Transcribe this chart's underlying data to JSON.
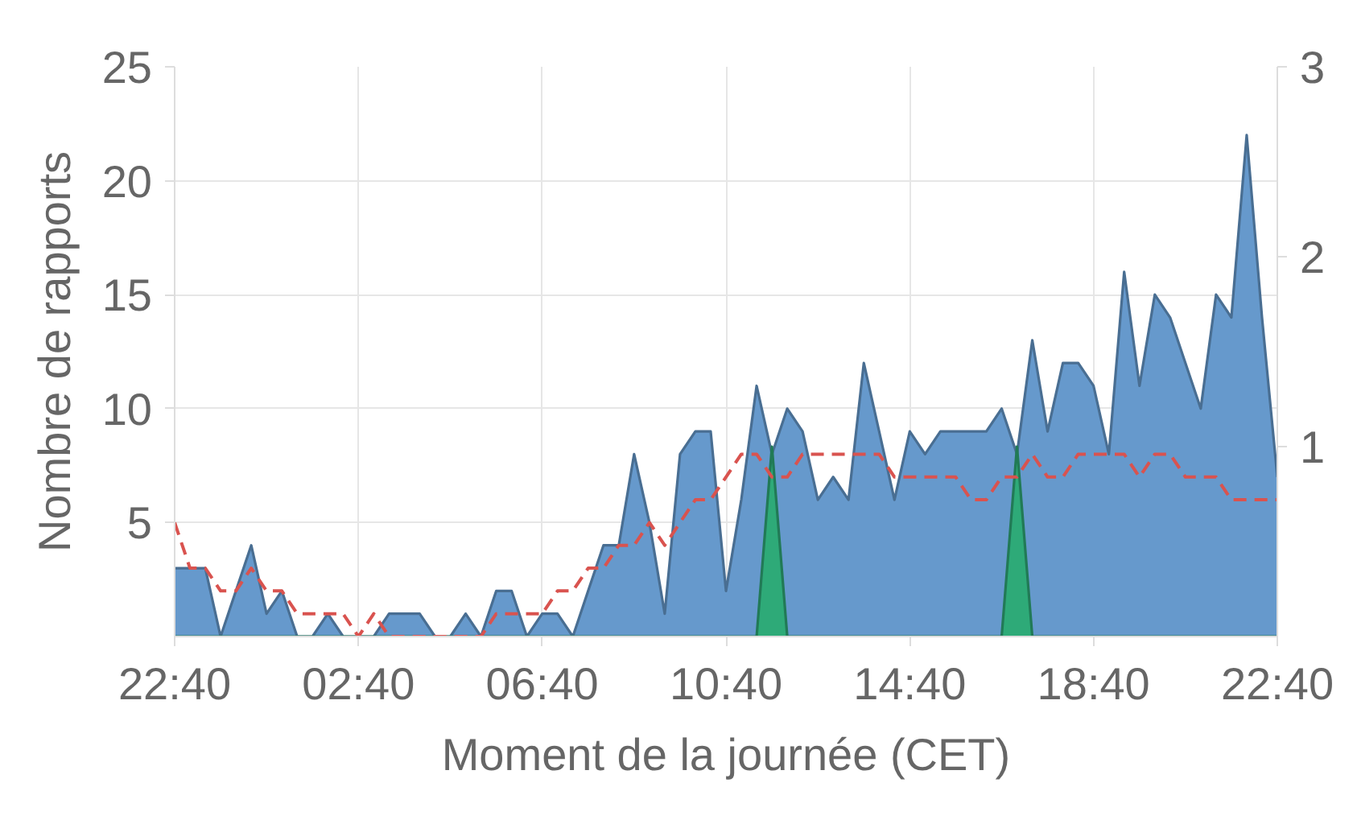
{
  "chart_data": {
    "type": "area",
    "xlabel": "Moment de la journée (CET)",
    "ylabel": "Nombre de rapports",
    "categories": [
      "22:40",
      null,
      null,
      null,
      null,
      null,
      null,
      null,
      null,
      null,
      null,
      null,
      "02:40",
      null,
      null,
      null,
      null,
      null,
      null,
      null,
      null,
      null,
      null,
      null,
      "06:40",
      null,
      null,
      null,
      null,
      null,
      null,
      null,
      null,
      null,
      null,
      null,
      "10:40",
      null,
      null,
      null,
      null,
      null,
      null,
      null,
      null,
      null,
      null,
      null,
      "14:40",
      null,
      null,
      null,
      null,
      null,
      null,
      null,
      null,
      null,
      null,
      null,
      "18:40",
      null,
      null,
      null,
      null,
      null,
      null,
      null,
      null,
      null,
      null,
      null,
      "22:40"
    ],
    "ylim": [
      0,
      25
    ],
    "yticks": [
      5,
      10,
      15,
      20,
      25
    ],
    "y2lim": [
      0,
      3
    ],
    "y2ticks": [
      1,
      2,
      3
    ],
    "grid": true,
    "series": [
      {
        "color": "#6699cc",
        "values": [
          3,
          3,
          3,
          0,
          2,
          4,
          1,
          2,
          0,
          0,
          1,
          0,
          0,
          0,
          1,
          1,
          1,
          0,
          0,
          1,
          0,
          2,
          2,
          0,
          1,
          1,
          0,
          2,
          4,
          4,
          8,
          5,
          1,
          8,
          9,
          9,
          2,
          6,
          11,
          8,
          10,
          9,
          6,
          7,
          6,
          12,
          9,
          6,
          9,
          8,
          9,
          9,
          9,
          9,
          10,
          8,
          13,
          9,
          12,
          12,
          11,
          8,
          16,
          11,
          15,
          14,
          12,
          10,
          15,
          14,
          22,
          14,
          7
        ]
      },
      {
        "type": "area",
        "axis": "y2",
        "color": "#2eaa78",
        "values": [
          0,
          0,
          0,
          0,
          0,
          0,
          0,
          0,
          0,
          0,
          0,
          0,
          0,
          0,
          0,
          0,
          0,
          0,
          0,
          0,
          0,
          0,
          0,
          0,
          0,
          0,
          0,
          0,
          0,
          0,
          0,
          0,
          0,
          0,
          0,
          0,
          0,
          0,
          0,
          1,
          0,
          0,
          0,
          0,
          0,
          0,
          0,
          0,
          0,
          0,
          0,
          0,
          0,
          0,
          0,
          1,
          0,
          0,
          0,
          0,
          0,
          0,
          0,
          0,
          0,
          0,
          0,
          0,
          0,
          0,
          0,
          0,
          0
        ]
      },
      {
        "type": "line",
        "color": "#d9534f",
        "line_style": "dashed",
        "values": [
          5,
          3,
          3,
          2,
          2,
          3,
          2,
          2,
          1,
          1,
          1,
          1,
          0,
          1,
          0,
          0,
          0,
          0,
          0,
          0,
          0,
          1,
          1,
          1,
          1,
          2,
          2,
          3,
          3,
          4,
          4,
          5,
          4,
          5,
          6,
          6,
          7,
          8,
          8,
          7,
          7,
          8,
          8,
          8,
          8,
          8,
          8,
          7,
          7,
          7,
          7,
          7,
          6,
          6,
          7,
          7,
          8,
          7,
          7,
          8,
          8,
          8,
          8,
          7,
          8,
          8,
          7,
          7,
          7,
          6,
          6,
          6,
          6
        ]
      }
    ]
  }
}
